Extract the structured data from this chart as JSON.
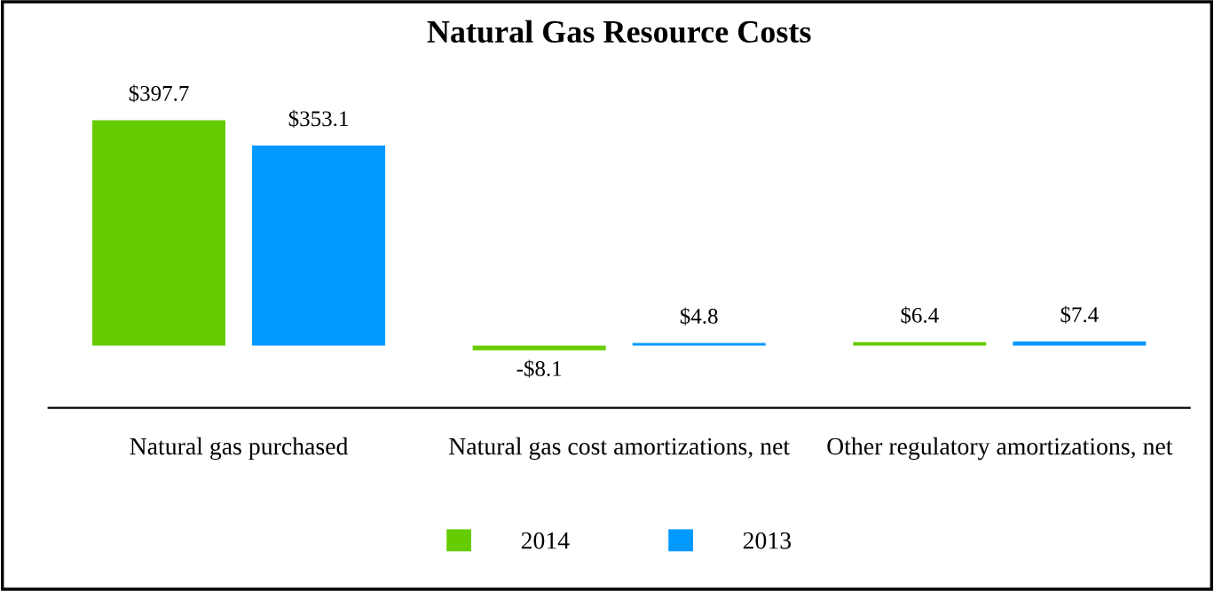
{
  "chart_data": {
    "type": "bar",
    "title": "Natural Gas Resource Costs",
    "categories": [
      "Natural gas purchased",
      "Natural gas cost amortizations, net",
      "Other regulatory amortizations, net"
    ],
    "series": [
      {
        "name": "2014",
        "color": "#66cc00",
        "values": [
          397.7,
          -8.1,
          6.4
        ],
        "value_labels": [
          "$397.7",
          "-$8.1",
          "$6.4"
        ]
      },
      {
        "name": "2013",
        "color": "#0099ff",
        "values": [
          353.1,
          4.8,
          7.4
        ],
        "value_labels": [
          "$353.1",
          "$4.8",
          "$7.4"
        ]
      }
    ],
    "legend": "bottom",
    "grid": false
  }
}
